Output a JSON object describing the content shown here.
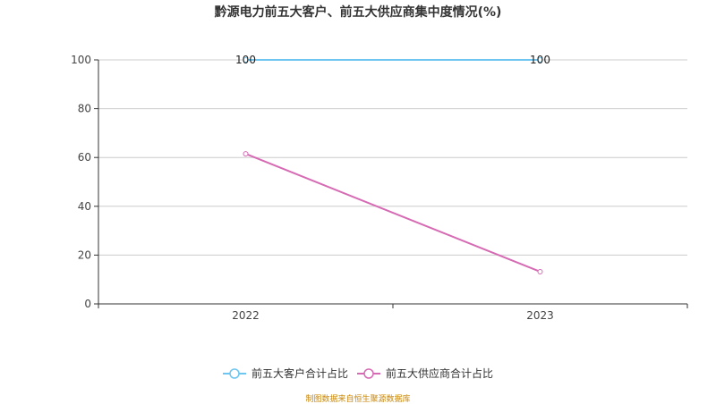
{
  "chart_data": {
    "type": "line",
    "title": "黔源电力前五大客户、前五大供应商集中度情况(%)",
    "x": [
      "2022",
      "2023"
    ],
    "ylim": [
      0,
      100
    ],
    "yticks": [
      0,
      20,
      40,
      60,
      80,
      100
    ],
    "grid": true,
    "legend_position": "bottom",
    "series": [
      {
        "name": "前五大客户合计占比",
        "values": [
          100,
          100
        ],
        "color": "#6ec6f0",
        "data_labels": [
          "100",
          "100"
        ]
      },
      {
        "name": "前五大供应商合计占比",
        "values": [
          61.5,
          13.2
        ],
        "color": "#d66bb4",
        "data_labels": [
          "",
          ""
        ]
      }
    ]
  },
  "source": "制图数据来自恒生聚源数据库"
}
